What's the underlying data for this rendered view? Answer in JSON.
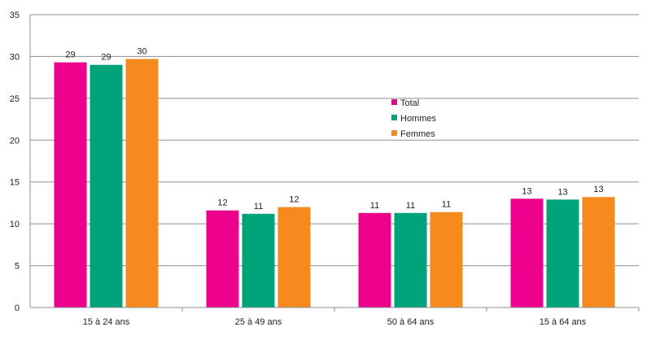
{
  "chart_data": {
    "type": "bar",
    "title": "",
    "xlabel": "",
    "ylabel": "",
    "ylim": [
      0,
      35
    ],
    "yticks": [
      "0",
      "5",
      "10",
      "15",
      "20",
      "25",
      "30",
      "35"
    ],
    "categories": [
      "15 à 24 ans",
      "25 à 49 ans",
      "50 à 64 ans",
      "15 à 64 ans"
    ],
    "series": [
      {
        "name": "Total",
        "color": "#ec008c",
        "values": [
          29.3,
          11.6,
          11.3,
          13.0
        ],
        "labels": [
          "29",
          "12",
          "11",
          "13"
        ]
      },
      {
        "name": "Hommes",
        "color": "#00a37a",
        "values": [
          29.0,
          11.2,
          11.3,
          12.9
        ],
        "labels": [
          "29",
          "11",
          "11",
          "13"
        ]
      },
      {
        "name": "Femmes",
        "color": "#f68a1e",
        "values": [
          29.7,
          12.0,
          11.4,
          13.2
        ],
        "labels": [
          "30",
          "12",
          "11",
          "13"
        ]
      }
    ],
    "grid": true,
    "legend_position": "center-right"
  }
}
